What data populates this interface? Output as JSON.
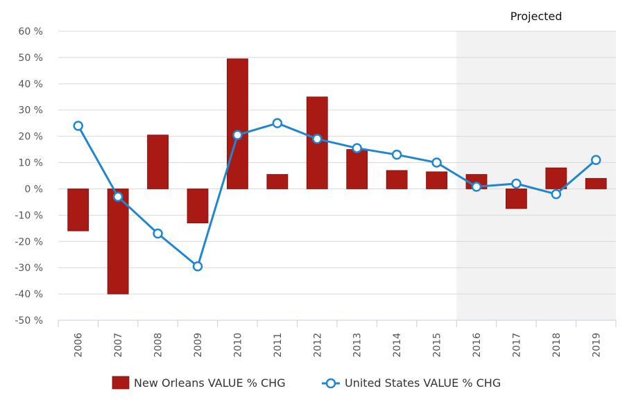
{
  "chart_data": {
    "type": "bar",
    "categories": [
      "2006",
      "2007",
      "2008",
      "2009",
      "2010",
      "2011",
      "2012",
      "2013",
      "2014",
      "2015",
      "2016",
      "2017",
      "2018",
      "2019"
    ],
    "series": [
      {
        "name": "New Orleans VALUE % CHG",
        "type": "bar",
        "color": "#AA1A14",
        "values": [
          -16,
          -40,
          20.5,
          -13,
          49.5,
          5.5,
          35,
          15,
          7,
          6.5,
          5.5,
          -7.5,
          8,
          4
        ]
      },
      {
        "name": "United States VALUE % CHG",
        "type": "line",
        "color": "#1F86D0",
        "values": [
          24,
          -3,
          -17,
          -29.5,
          20.5,
          25,
          19,
          15.5,
          13,
          10,
          0.8,
          2,
          -2,
          11
        ]
      }
    ],
    "ylim": [
      -50,
      60
    ],
    "yticks": [
      -50,
      -40,
      -30,
      -20,
      -10,
      0,
      10,
      20,
      30,
      40,
      50,
      60
    ],
    "ytick_labels": [
      "-50 %",
      "-40 %",
      "-30 %",
      "-20 %",
      "-10 %",
      "0 %",
      "10 %",
      "20 %",
      "30 %",
      "40 %",
      "50 %",
      "60 %"
    ],
    "projected_band": {
      "label": "Projected",
      "from_category": "2016",
      "to_category": "2019"
    },
    "grid": true,
    "legend_position": "bottom"
  }
}
